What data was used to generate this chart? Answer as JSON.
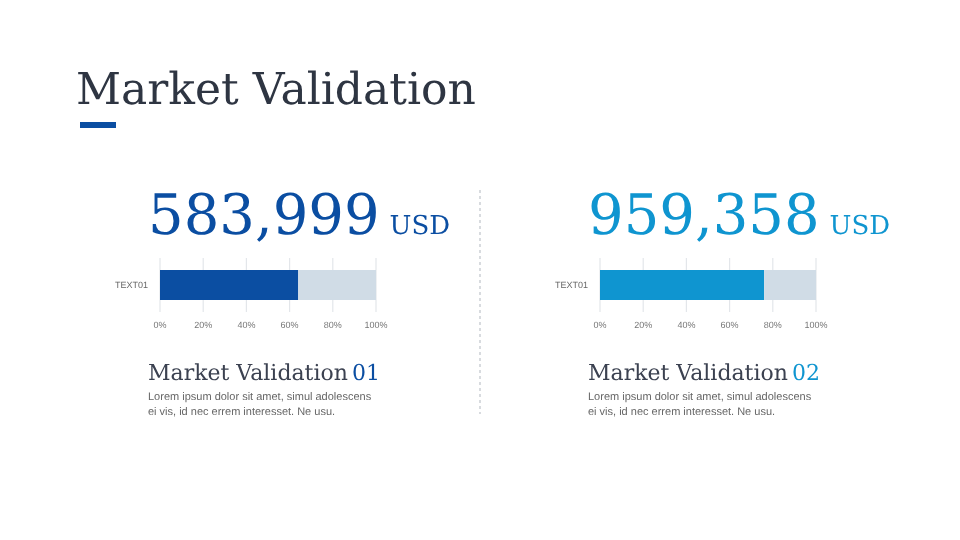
{
  "chart_data": [
    {
      "type": "other",
      "title": "Market Validation"
    },
    {
      "type": "bar",
      "orientation": "horizontal",
      "stacked": true,
      "title": "583,999",
      "subtitle": "USD",
      "categories": [
        "TEXT01"
      ],
      "series": [
        {
          "color": "#0b4ea2",
          "values": [
            64
          ]
        },
        {
          "color": "#d0dce6",
          "values": [
            36
          ]
        }
      ],
      "xlim": [
        0,
        100
      ],
      "xticks": [
        {
          "value": 0,
          "label": "0%"
        },
        {
          "value": 20,
          "label": "20%"
        },
        {
          "value": 40,
          "label": "40%"
        },
        {
          "value": 60,
          "label": "60%"
        },
        {
          "value": 80,
          "label": "80%"
        },
        {
          "value": 100,
          "label": "100%"
        }
      ],
      "grid": "x",
      "annotations": [
        "Market Validation",
        "01",
        "Lorem ipsum dolor sit amet, simul adolescens",
        "ei vis, id nec errem interesset. Ne usu."
      ]
    },
    {
      "type": "bar",
      "orientation": "horizontal",
      "stacked": true,
      "title": "959,358",
      "subtitle": "USD",
      "categories": [
        "TEXT01"
      ],
      "series": [
        {
          "color": "#0f95d0",
          "values": [
            76
          ]
        },
        {
          "color": "#d0dce6",
          "values": [
            24
          ]
        }
      ],
      "xlim": [
        0,
        100
      ],
      "xticks": [
        {
          "value": 0,
          "label": "0%"
        },
        {
          "value": 20,
          "label": "20%"
        },
        {
          "value": 40,
          "label": "40%"
        },
        {
          "value": 60,
          "label": "60%"
        },
        {
          "value": 80,
          "label": "80%"
        },
        {
          "value": 100,
          "label": "100%"
        }
      ],
      "grid": "x",
      "annotations": [
        "Market Validation",
        "02",
        "Lorem ipsum dolor sit amet, simul adolescens",
        "ei vis, id nec errem interesset. Ne usu."
      ]
    }
  ]
}
